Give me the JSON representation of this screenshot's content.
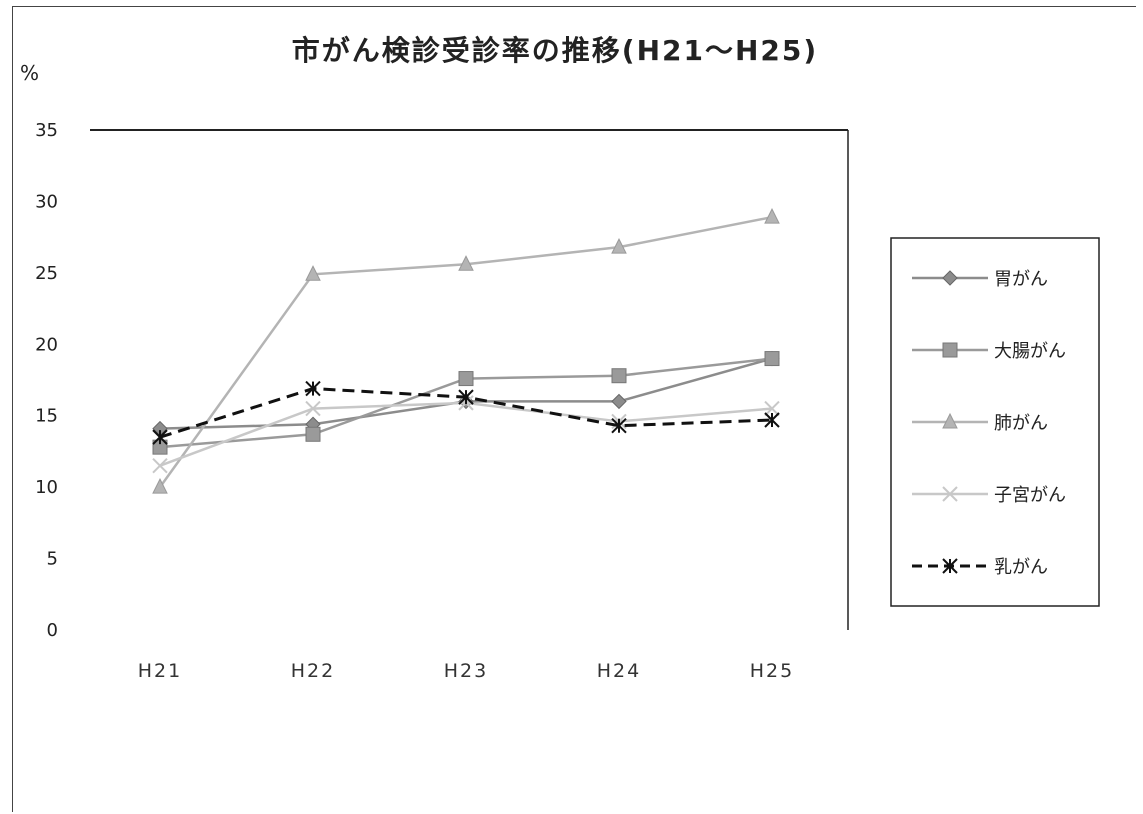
{
  "chart_data": {
    "type": "line",
    "title": "市がん検診受診率の推移(H21～H25)",
    "ylabel": "%",
    "ylim": [
      0,
      35
    ],
    "yticks": [
      0,
      5,
      10,
      15,
      20,
      25,
      30,
      35
    ],
    "categories": [
      "H21",
      "H22",
      "H23",
      "H24",
      "H25"
    ],
    "legend_position": "right",
    "series": [
      {
        "name": "胃がん",
        "values": [
          14.1,
          14.4,
          16.0,
          16.0,
          19.0
        ],
        "color": "#8c8c8c",
        "marker": "diamond",
        "dash": "solid"
      },
      {
        "name": "大腸がん",
        "values": [
          12.8,
          13.7,
          17.6,
          17.8,
          19.0
        ],
        "color": "#9a9a9a",
        "marker": "square",
        "dash": "solid"
      },
      {
        "name": "肺がん",
        "values": [
          10.0,
          24.9,
          25.6,
          26.8,
          28.9
        ],
        "color": "#b4b4b4",
        "marker": "triangle",
        "dash": "solid"
      },
      {
        "name": "子宮がん",
        "values": [
          11.5,
          15.5,
          15.9,
          14.6,
          15.5
        ],
        "color": "#c8c8c8",
        "marker": "cross",
        "dash": "solid"
      },
      {
        "name": "乳がん",
        "values": [
          13.5,
          16.9,
          16.3,
          14.3,
          14.7
        ],
        "color": "#111111",
        "marker": "asterisk",
        "dash": "dashed"
      }
    ]
  }
}
